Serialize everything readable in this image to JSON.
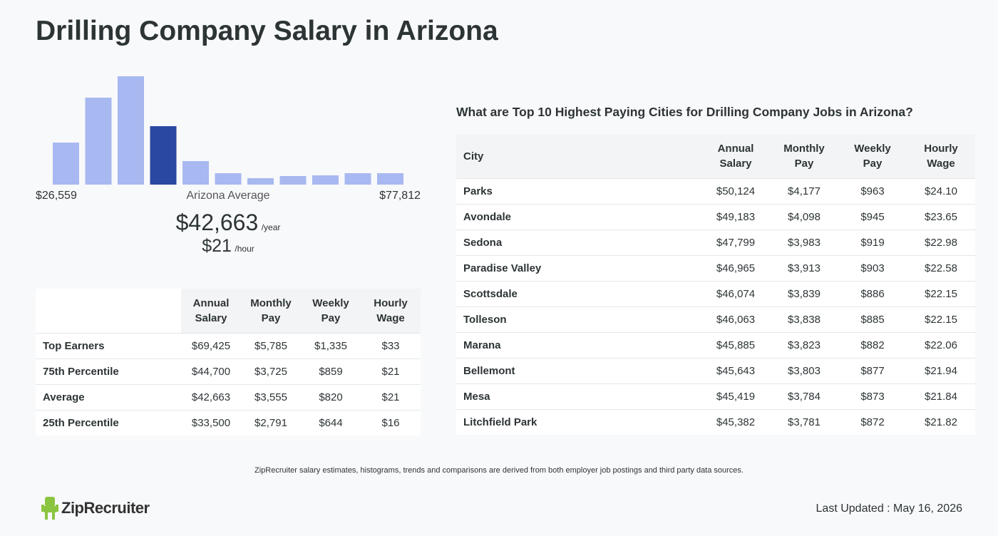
{
  "title": "Drilling Company Salary in Arizona",
  "histogram": {
    "type": "histogram",
    "values": [
      59,
      122,
      152,
      82,
      33,
      16,
      9,
      12,
      13,
      16,
      16
    ],
    "color": "#a8b8f0",
    "highlight_color": "#2a48a0",
    "highlight_index": 3,
    "min_label": "$26,559",
    "max_label": "$77,812",
    "average_label": "Arizona Average"
  },
  "average": {
    "annual": "$42,663",
    "annual_unit": "/year",
    "hourly": "$21",
    "hourly_unit": "/hour"
  },
  "percentile_table": {
    "columns": [
      "Annual Salary",
      "Monthly Pay",
      "Weekly Pay",
      "Hourly Wage"
    ],
    "rows": [
      [
        "Top Earners",
        "$69,425",
        "$5,785",
        "$1,335",
        "$33"
      ],
      [
        "75th Percentile",
        "$44,700",
        "$3,725",
        "$859",
        "$21"
      ],
      [
        "Average",
        "$42,663",
        "$3,555",
        "$820",
        "$21"
      ],
      [
        "25th Percentile",
        "$33,500",
        "$2,791",
        "$644",
        "$16"
      ]
    ]
  },
  "cities_table": {
    "title": "What are Top 10 Highest Paying Cities for Drilling Company Jobs in Arizona?",
    "columns": [
      "City",
      "Annual Salary",
      "Monthly Pay",
      "Weekly Pay",
      "Hourly Wage"
    ],
    "rows": [
      [
        "Parks",
        "$50,124",
        "$4,177",
        "$963",
        "$24.10"
      ],
      [
        "Avondale",
        "$49,183",
        "$4,098",
        "$945",
        "$23.65"
      ],
      [
        "Sedona",
        "$47,799",
        "$3,983",
        "$919",
        "$22.98"
      ],
      [
        "Paradise Valley",
        "$46,965",
        "$3,913",
        "$903",
        "$22.58"
      ],
      [
        "Scottsdale",
        "$46,074",
        "$3,839",
        "$886",
        "$22.15"
      ],
      [
        "Tolleson",
        "$46,063",
        "$3,838",
        "$885",
        "$22.15"
      ],
      [
        "Marana",
        "$45,885",
        "$3,823",
        "$882",
        "$22.06"
      ],
      [
        "Bellemont",
        "$45,643",
        "$3,803",
        "$877",
        "$21.94"
      ],
      [
        "Mesa",
        "$45,419",
        "$3,784",
        "$873",
        "$21.84"
      ],
      [
        "Litchfield Park",
        "$45,382",
        "$3,781",
        "$872",
        "$21.82"
      ]
    ]
  },
  "footer": {
    "note": "ZipRecruiter salary estimates, histograms, trends and comparisons are derived from both employer job postings and third party data sources.",
    "logo": "ZipRecruiter",
    "last_updated": "Last Updated : May 16, 2026"
  }
}
